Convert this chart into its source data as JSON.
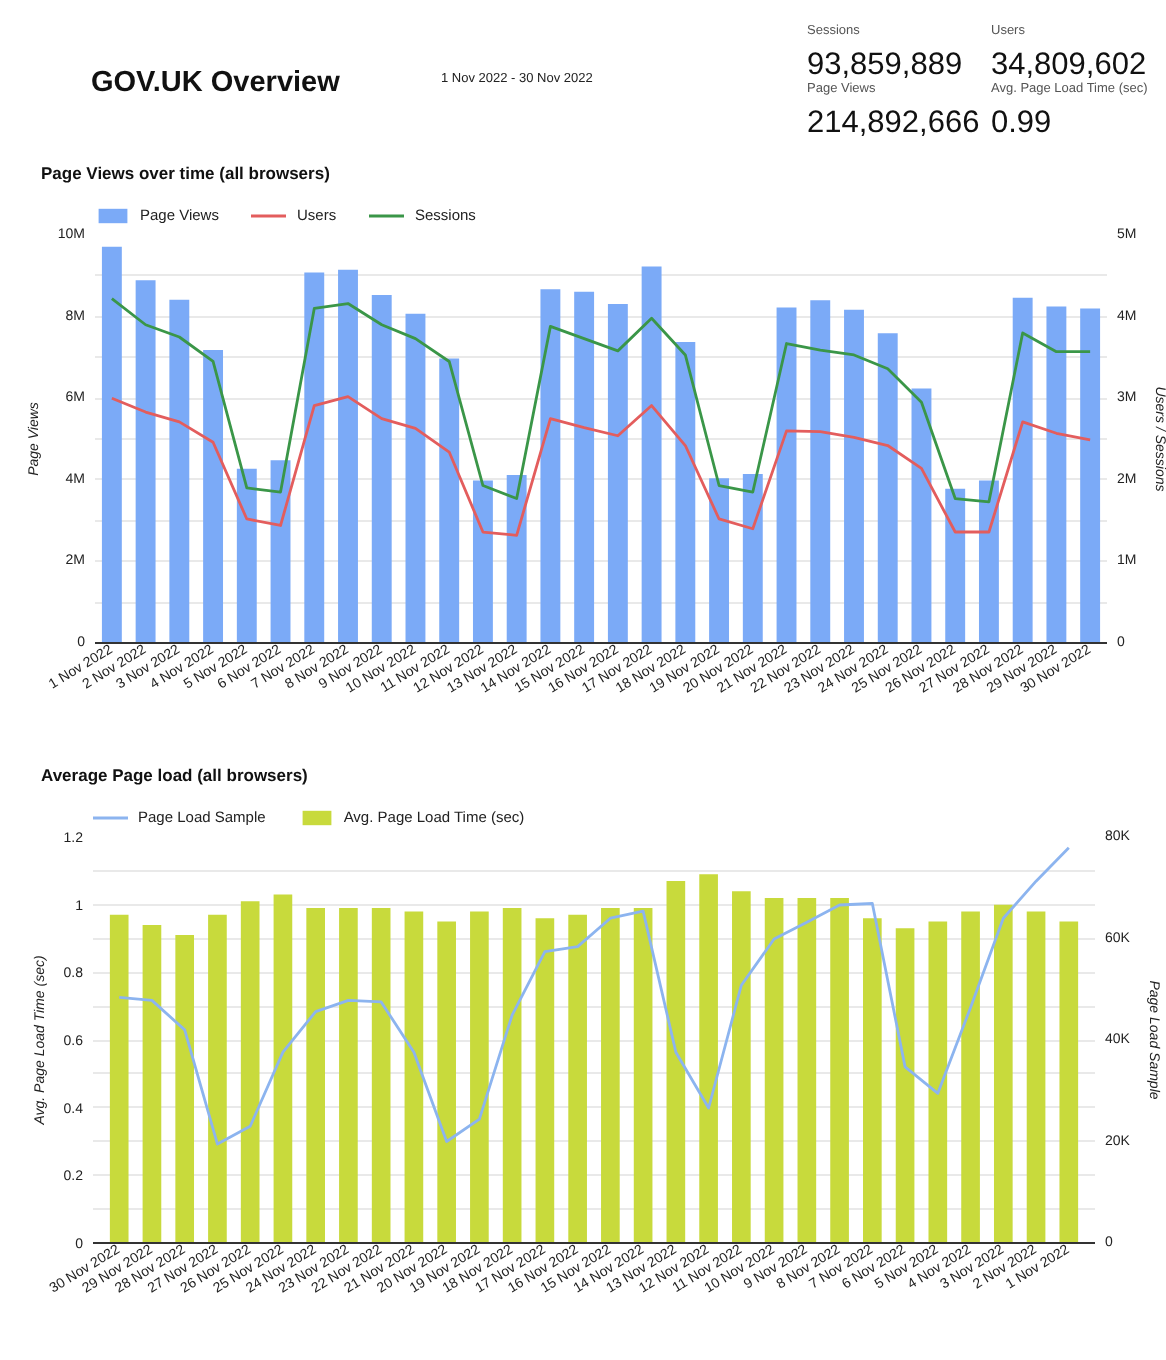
{
  "chart_data": [
    {
      "type": "other",
      "title": "GOV.UK Overview",
      "annotations": [
        "1 Nov 2022 - 30 Nov 2022",
        "Sessions",
        "93,859,889",
        "Users",
        "34,809,602",
        "Page Views",
        "214,892,666",
        "Avg. Page Load Time (sec)",
        "0.99"
      ]
    },
    {
      "type": "bar",
      "title": "Page Views over time (all browsers)",
      "categories": [
        "1 Nov 2022",
        "2 Nov 2022",
        "3 Nov 2022",
        "4 Nov 2022",
        "5 Nov 2022",
        "6 Nov 2022",
        "7 Nov 2022",
        "8 Nov 2022",
        "9 Nov 2022",
        "10 Nov 2022",
        "11 Nov 2022",
        "12 Nov 2022",
        "13 Nov 2022",
        "14 Nov 2022",
        "15 Nov 2022",
        "16 Nov 2022",
        "17 Nov 2022",
        "18 Nov 2022",
        "19 Nov 2022",
        "20 Nov 2022",
        "21 Nov 2022",
        "22 Nov 2022",
        "23 Nov 2022",
        "24 Nov 2022",
        "25 Nov 2022",
        "26 Nov 2022",
        "27 Nov 2022",
        "28 Nov 2022",
        "29 Nov 2022",
        "30 Nov 2022"
      ],
      "series": [
        {
          "name": "Page Views",
          "type": "bar",
          "color": "#7baaf7",
          "values": [
            9.71,
            8.89,
            8.41,
            7.18,
            4.27,
            4.48,
            9.08,
            9.15,
            8.53,
            8.07,
            6.97,
            3.98,
            4.12,
            8.67,
            8.61,
            8.31,
            9.23,
            7.38,
            4.04,
            4.14,
            8.22,
            8.4,
            8.17,
            7.59,
            6.24,
            3.78,
            3.98,
            8.46,
            8.25,
            8.2
          ]
        },
        {
          "name": "Users",
          "type": "line",
          "axis": "y2",
          "color": "#e35d5d",
          "values": [
            3.0,
            2.83,
            2.71,
            2.46,
            1.52,
            1.44,
            2.91,
            3.02,
            2.75,
            2.63,
            2.34,
            1.36,
            1.32,
            2.75,
            2.64,
            2.54,
            2.91,
            2.42,
            1.52,
            1.4,
            2.6,
            2.59,
            2.52,
            2.42,
            2.14,
            1.36,
            1.36,
            2.71,
            2.57,
            2.49
          ]
        },
        {
          "name": "Sessions",
          "type": "line",
          "axis": "y2",
          "color": "#3a9648",
          "values": [
            4.22,
            3.9,
            3.75,
            3.45,
            1.9,
            1.85,
            4.1,
            4.16,
            3.9,
            3.73,
            3.45,
            1.93,
            1.77,
            3.88,
            3.73,
            3.58,
            3.98,
            3.53,
            1.93,
            1.85,
            3.67,
            3.59,
            3.53,
            3.36,
            2.95,
            1.77,
            1.73,
            3.8,
            3.57,
            3.57
          ]
        }
      ],
      "ylabel": "Page Views",
      "y2label": "Users / Sessions",
      "ylim": [
        0,
        10
      ],
      "yticks": [
        0,
        {
          "value": 1,
          "label": null
        },
        {
          "value": 2,
          "label": "2M"
        },
        {
          "value": 3,
          "label": null
        },
        {
          "value": 4,
          "label": "4M"
        },
        {
          "value": 5,
          "label": null
        },
        {
          "value": 6,
          "label": "6M"
        },
        {
          "value": 7,
          "label": null
        },
        {
          "value": 8,
          "label": "8M"
        },
        {
          "value": 9,
          "label": null
        },
        {
          "value": 10,
          "label": "10M"
        }
      ],
      "y2lim": [
        0,
        5
      ],
      "y2ticks": [
        0,
        {
          "value": 1,
          "label": "1M"
        },
        {
          "value": 2,
          "label": "2M"
        },
        {
          "value": 3,
          "label": "3M"
        },
        {
          "value": 4,
          "label": "4M"
        },
        {
          "value": 5,
          "label": "5M"
        }
      ],
      "grid": "y",
      "legend": "top left"
    },
    {
      "type": "bar",
      "title": "Average Page load (all browsers)",
      "categories": [
        "30 Nov 2022",
        "29 Nov 2022",
        "28 Nov 2022",
        "27 Nov 2022",
        "26 Nov 2022",
        "25 Nov 2022",
        "24 Nov 2022",
        "23 Nov 2022",
        "22 Nov 2022",
        "21 Nov 2022",
        "20 Nov 2022",
        "19 Nov 2022",
        "18 Nov 2022",
        "17 Nov 2022",
        "16 Nov 2022",
        "15 Nov 2022",
        "14 Nov 2022",
        "13 Nov 2022",
        "12 Nov 2022",
        "11 Nov 2022",
        "10 Nov 2022",
        "9 Nov 2022",
        "8 Nov 2022",
        "7 Nov 2022",
        "6 Nov 2022",
        "5 Nov 2022",
        "4 Nov 2022",
        "3 Nov 2022",
        "2 Nov 2022",
        "1 Nov 2022"
      ],
      "series": [
        {
          "name": "Page Load Sample",
          "type": "line",
          "axis": "y2",
          "color": "#8cb4ef",
          "values": [
            48.4,
            47.8,
            42.0,
            19.5,
            23.0,
            37.6,
            45.6,
            47.8,
            47.5,
            37.6,
            20.0,
            24.4,
            44.9,
            57.4,
            58.4,
            64.0,
            65.4,
            37.6,
            26.6,
            50.8,
            59.9,
            63.2,
            66.6,
            66.9,
            34.7,
            29.5,
            46.4,
            64.0,
            71.3,
            77.9
          ]
        },
        {
          "name": "Avg. Page Load Time (sec)",
          "type": "bar",
          "color": "#c8da3c",
          "values": [
            0.97,
            0.94,
            0.91,
            0.97,
            1.01,
            1.03,
            0.99,
            0.99,
            0.99,
            0.98,
            0.95,
            0.98,
            0.99,
            0.96,
            0.97,
            0.99,
            0.99,
            1.07,
            1.09,
            1.04,
            1.02,
            1.02,
            1.02,
            0.96,
            0.93,
            0.95,
            0.98,
            1.0,
            0.98,
            0.95
          ]
        }
      ],
      "ylabel": "Avg. Page Load Time (sec)",
      "y2label": "Page Load Sample",
      "ylim": [
        0,
        1.2
      ],
      "yticks": [
        0,
        {
          "value": 0.1,
          "label": null
        },
        0.2,
        {
          "value": 0.3,
          "label": null
        },
        0.4,
        {
          "value": 0.5,
          "label": null
        },
        0.6,
        {
          "value": 0.7,
          "label": null
        },
        0.8,
        {
          "value": 0.9,
          "label": null
        },
        1,
        {
          "value": 1.1,
          "label": null
        },
        1.2
      ],
      "y2lim": [
        0,
        80
      ],
      "y2ticks": [
        0,
        {
          "value": 20,
          "label": "20K"
        },
        {
          "value": 40,
          "label": "40K"
        },
        {
          "value": 60,
          "label": "60K"
        },
        {
          "value": 80,
          "label": "80K"
        }
      ],
      "grid": "y",
      "legend": "top left"
    }
  ]
}
